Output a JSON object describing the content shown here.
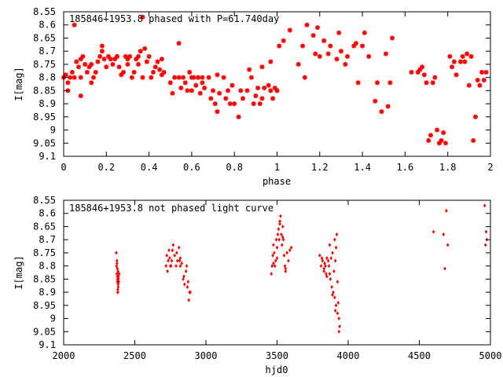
{
  "chart_data": [
    {
      "type": "scatter",
      "title": "185846+1953.8 phased with P=61.740day",
      "xlabel": "phase",
      "ylabel": "I[mag]",
      "xlim": [
        0,
        2
      ],
      "ylim": [
        9.1,
        8.55
      ],
      "y_inverted": true,
      "grid": false,
      "legend": "none",
      "color": "#ff0000",
      "marker": "star",
      "xticks": [
        "0",
        "0.2",
        "0.4",
        "0.6",
        "0.8",
        "1",
        "1.2",
        "1.4",
        "1.6",
        "1.8",
        "2"
      ],
      "yticks": [
        "8.55",
        "8.6",
        "8.65",
        "8.7",
        "8.75",
        "8.8",
        "8.85",
        "8.9",
        "8.95",
        "9",
        "9.05",
        "9.1"
      ],
      "series": [
        {
          "x": [
            0.0,
            0.01,
            0.02,
            0.02,
            0.03,
            0.04,
            0.05,
            0.06,
            0.07,
            0.08,
            0.08,
            0.09,
            0.1,
            0.11,
            0.12,
            0.13,
            0.14,
            0.15,
            0.16,
            0.17,
            0.18,
            0.19,
            0.2,
            0.21,
            0.22,
            0.23,
            0.24,
            0.25,
            0.26,
            0.27,
            0.28,
            0.29,
            0.3,
            0.31,
            0.32,
            0.33,
            0.34,
            0.35,
            0.36,
            0.37,
            0.38,
            0.39,
            0.4,
            0.41,
            0.42,
            0.43,
            0.44,
            0.45,
            0.46,
            0.47,
            0.5,
            0.51,
            0.52,
            0.54,
            0.55,
            0.56,
            0.57,
            0.58,
            0.59,
            0.6,
            0.61,
            0.62,
            0.63,
            0.64,
            0.65,
            0.66,
            0.68,
            0.69,
            0.7,
            0.71,
            0.72,
            0.73,
            0.75,
            0.76,
            0.77,
            0.78,
            0.8,
            0.82,
            0.84,
            0.86,
            0.88,
            0.89,
            0.9,
            0.91,
            0.92,
            0.93,
            0.94,
            0.96,
            0.97,
            0.98,
            0.99,
            1.0,
            0.05,
            0.08,
            0.13,
            0.18,
            0.25,
            0.3,
            0.35,
            0.37,
            0.46,
            0.54,
            0.6,
            0.65,
            0.72,
            0.79,
            0.83,
            0.87,
            0.93,
            0.97
          ],
          "y": [
            8.8,
            8.79,
            8.82,
            8.85,
            8.8,
            8.78,
            8.8,
            8.74,
            8.76,
            8.8,
            8.87,
            8.72,
            8.75,
            8.78,
            8.76,
            8.82,
            8.8,
            8.78,
            8.74,
            8.72,
            8.7,
            8.73,
            8.76,
            8.72,
            8.73,
            8.75,
            8.73,
            8.72,
            8.76,
            8.79,
            8.78,
            8.72,
            8.75,
            8.72,
            8.8,
            8.78,
            8.73,
            8.75,
            8.7,
            8.8,
            8.69,
            8.74,
            8.72,
            8.8,
            8.78,
            8.76,
            8.74,
            8.77,
            8.73,
            8.78,
            8.82,
            8.86,
            8.8,
            8.8,
            8.84,
            8.8,
            8.82,
            8.85,
            8.78,
            8.85,
            8.8,
            8.83,
            8.8,
            8.86,
            8.8,
            8.84,
            8.8,
            8.88,
            8.85,
            8.9,
            8.93,
            8.86,
            8.8,
            8.88,
            8.85,
            8.9,
            8.9,
            8.95,
            8.88,
            8.85,
            8.8,
            8.9,
            8.87,
            8.84,
            8.9,
            8.88,
            8.84,
            8.83,
            8.85,
            8.88,
            8.84,
            8.85,
            8.6,
            8.73,
            8.75,
            8.68,
            8.72,
            8.73,
            8.72,
            8.57,
            8.79,
            8.67,
            8.8,
            8.82,
            8.79,
            8.83,
            8.85,
            8.77,
            8.76,
            8.74
          ]
        },
        {
          "x": [
            1.0,
            1.01,
            1.03,
            1.06,
            1.1,
            1.12,
            1.13,
            1.14,
            1.17,
            1.18,
            1.19,
            1.2,
            1.22,
            1.24,
            1.25,
            1.28,
            1.29,
            1.3,
            1.32,
            1.33,
            1.36,
            1.37,
            1.38,
            1.4,
            1.41,
            1.43,
            1.46,
            1.47,
            1.49,
            1.51,
            1.52,
            1.53,
            1.54,
            1.63,
            1.66,
            1.67,
            1.68,
            1.69,
            1.7,
            1.71,
            1.72,
            1.73,
            1.74,
            1.75,
            1.76,
            1.77,
            1.78,
            1.79,
            1.81,
            1.82,
            1.83,
            1.84,
            1.86,
            1.87,
            1.88,
            1.89,
            1.9,
            1.91,
            1.92,
            1.93,
            1.94,
            1.95,
            1.96,
            1.97,
            1.98
          ],
          "y": [
            8.85,
            8.68,
            8.66,
            8.62,
            8.75,
            8.68,
            8.8,
            8.6,
            8.64,
            8.71,
            8.61,
            8.72,
            8.66,
            8.71,
            8.68,
            8.73,
            8.63,
            8.7,
            8.75,
            8.72,
            8.68,
            8.67,
            8.82,
            8.68,
            8.63,
            8.72,
            8.89,
            8.82,
            8.93,
            8.71,
            8.91,
            8.82,
            8.65,
            8.78,
            8.78,
            8.77,
            8.76,
            8.79,
            8.82,
            9.04,
            9.02,
            8.82,
            8.8,
            9.0,
            9.05,
            9.04,
            9.01,
            9.05,
            8.72,
            8.76,
            8.74,
            8.79,
            8.74,
            8.72,
            8.74,
            8.71,
            8.83,
            8.72,
            9.04,
            8.95,
            8.81,
            8.83,
            8.78,
            8.81,
            8.78
          ]
        }
      ]
    },
    {
      "type": "scatter",
      "title": "185846+1953.8 not phased light curve",
      "xlabel": "hjd0",
      "ylabel": "I[mag]",
      "xlim": [
        2000,
        5000
      ],
      "ylim": [
        9.1,
        8.55
      ],
      "y_inverted": true,
      "grid": false,
      "legend": "none",
      "color": "#ff0000",
      "marker": "diamond",
      "xticks": [
        "2000",
        "2500",
        "3000",
        "3500",
        "4000",
        "4500",
        "5000"
      ],
      "yticks": [
        "8.55",
        "8.6",
        "8.65",
        "8.7",
        "8.75",
        "8.8",
        "8.85",
        "8.9",
        "8.95",
        "9",
        "9.05",
        "9.1"
      ],
      "series": [
        {
          "x": [
            2370,
            2372,
            2374,
            2375,
            2377,
            2379,
            2380,
            2382,
            2384,
            2386,
            2388,
            2380,
            2377,
            2383,
            2375,
            2385,
            2390,
            2381,
            2378,
            2382,
            2720,
            2730,
            2740,
            2745,
            2750,
            2760,
            2770,
            2780,
            2790,
            2795,
            2800,
            2810,
            2820,
            2830,
            2840,
            2850,
            2860,
            2870,
            2880,
            2890,
            2735,
            2725,
            2755,
            2765,
            2815,
            2845,
            2865,
            2875,
            2885,
            2820,
            3460,
            3465,
            3470,
            3475,
            3480,
            3485,
            3490,
            3495,
            3500,
            3505,
            3510,
            3515,
            3520,
            3525,
            3530,
            3535,
            3540,
            3545,
            3550,
            3555,
            3560,
            3570,
            3580,
            3590,
            3600,
            3475,
            3500,
            3520,
            3540,
            3560,
            3800,
            3810,
            3820,
            3830,
            3840,
            3850,
            3860,
            3870,
            3880,
            3890,
            3900,
            3905,
            3910,
            3915,
            3920,
            3925,
            3930,
            3935,
            3940,
            3815,
            3835,
            3845,
            3865,
            3875,
            3885,
            3895,
            3905,
            3915,
            3925,
            3935,
            3830,
            3850,
            3870,
            3890,
            3910,
            4600,
            4670,
            4680,
            4700,
            4690,
            4960,
            4965,
            4970,
            4975
          ],
          "y": [
            8.75,
            8.8,
            8.83,
            8.78,
            8.86,
            8.85,
            8.9,
            8.82,
            8.88,
            8.84,
            8.86,
            8.89,
            8.81,
            8.87,
            8.79,
            8.85,
            8.83,
            8.9,
            8.84,
            8.86,
            8.8,
            8.82,
            8.74,
            8.77,
            8.8,
            8.78,
            8.72,
            8.76,
            8.8,
            8.75,
            8.78,
            8.73,
            8.77,
            8.79,
            8.85,
            8.87,
            8.82,
            8.88,
            8.93,
            8.9,
            8.78,
            8.76,
            8.8,
            8.74,
            8.78,
            8.84,
            8.8,
            8.86,
            8.9,
            8.8,
            8.83,
            8.8,
            8.76,
            8.72,
            8.75,
            8.8,
            8.78,
            8.7,
            8.73,
            8.68,
            8.66,
            8.7,
            8.63,
            8.61,
            8.68,
            8.72,
            8.65,
            8.7,
            8.76,
            8.8,
            8.82,
            8.75,
            8.78,
            8.74,
            8.73,
            8.79,
            8.77,
            8.64,
            8.69,
            8.81,
            8.76,
            8.8,
            8.78,
            8.82,
            8.8,
            8.84,
            8.78,
            8.72,
            8.77,
            8.75,
            8.82,
            8.7,
            8.78,
            8.73,
            8.68,
            8.86,
            8.94,
            9.0,
            9.03,
            8.77,
            8.79,
            8.83,
            8.8,
            8.85,
            8.88,
            8.9,
            8.92,
            8.95,
            8.98,
            9.05,
            8.81,
            8.77,
            8.83,
            8.91,
            8.97,
            8.67,
            8.68,
            8.81,
            8.72,
            8.59,
            8.57,
            8.72,
            8.67,
            8.7
          ]
        }
      ]
    }
  ]
}
